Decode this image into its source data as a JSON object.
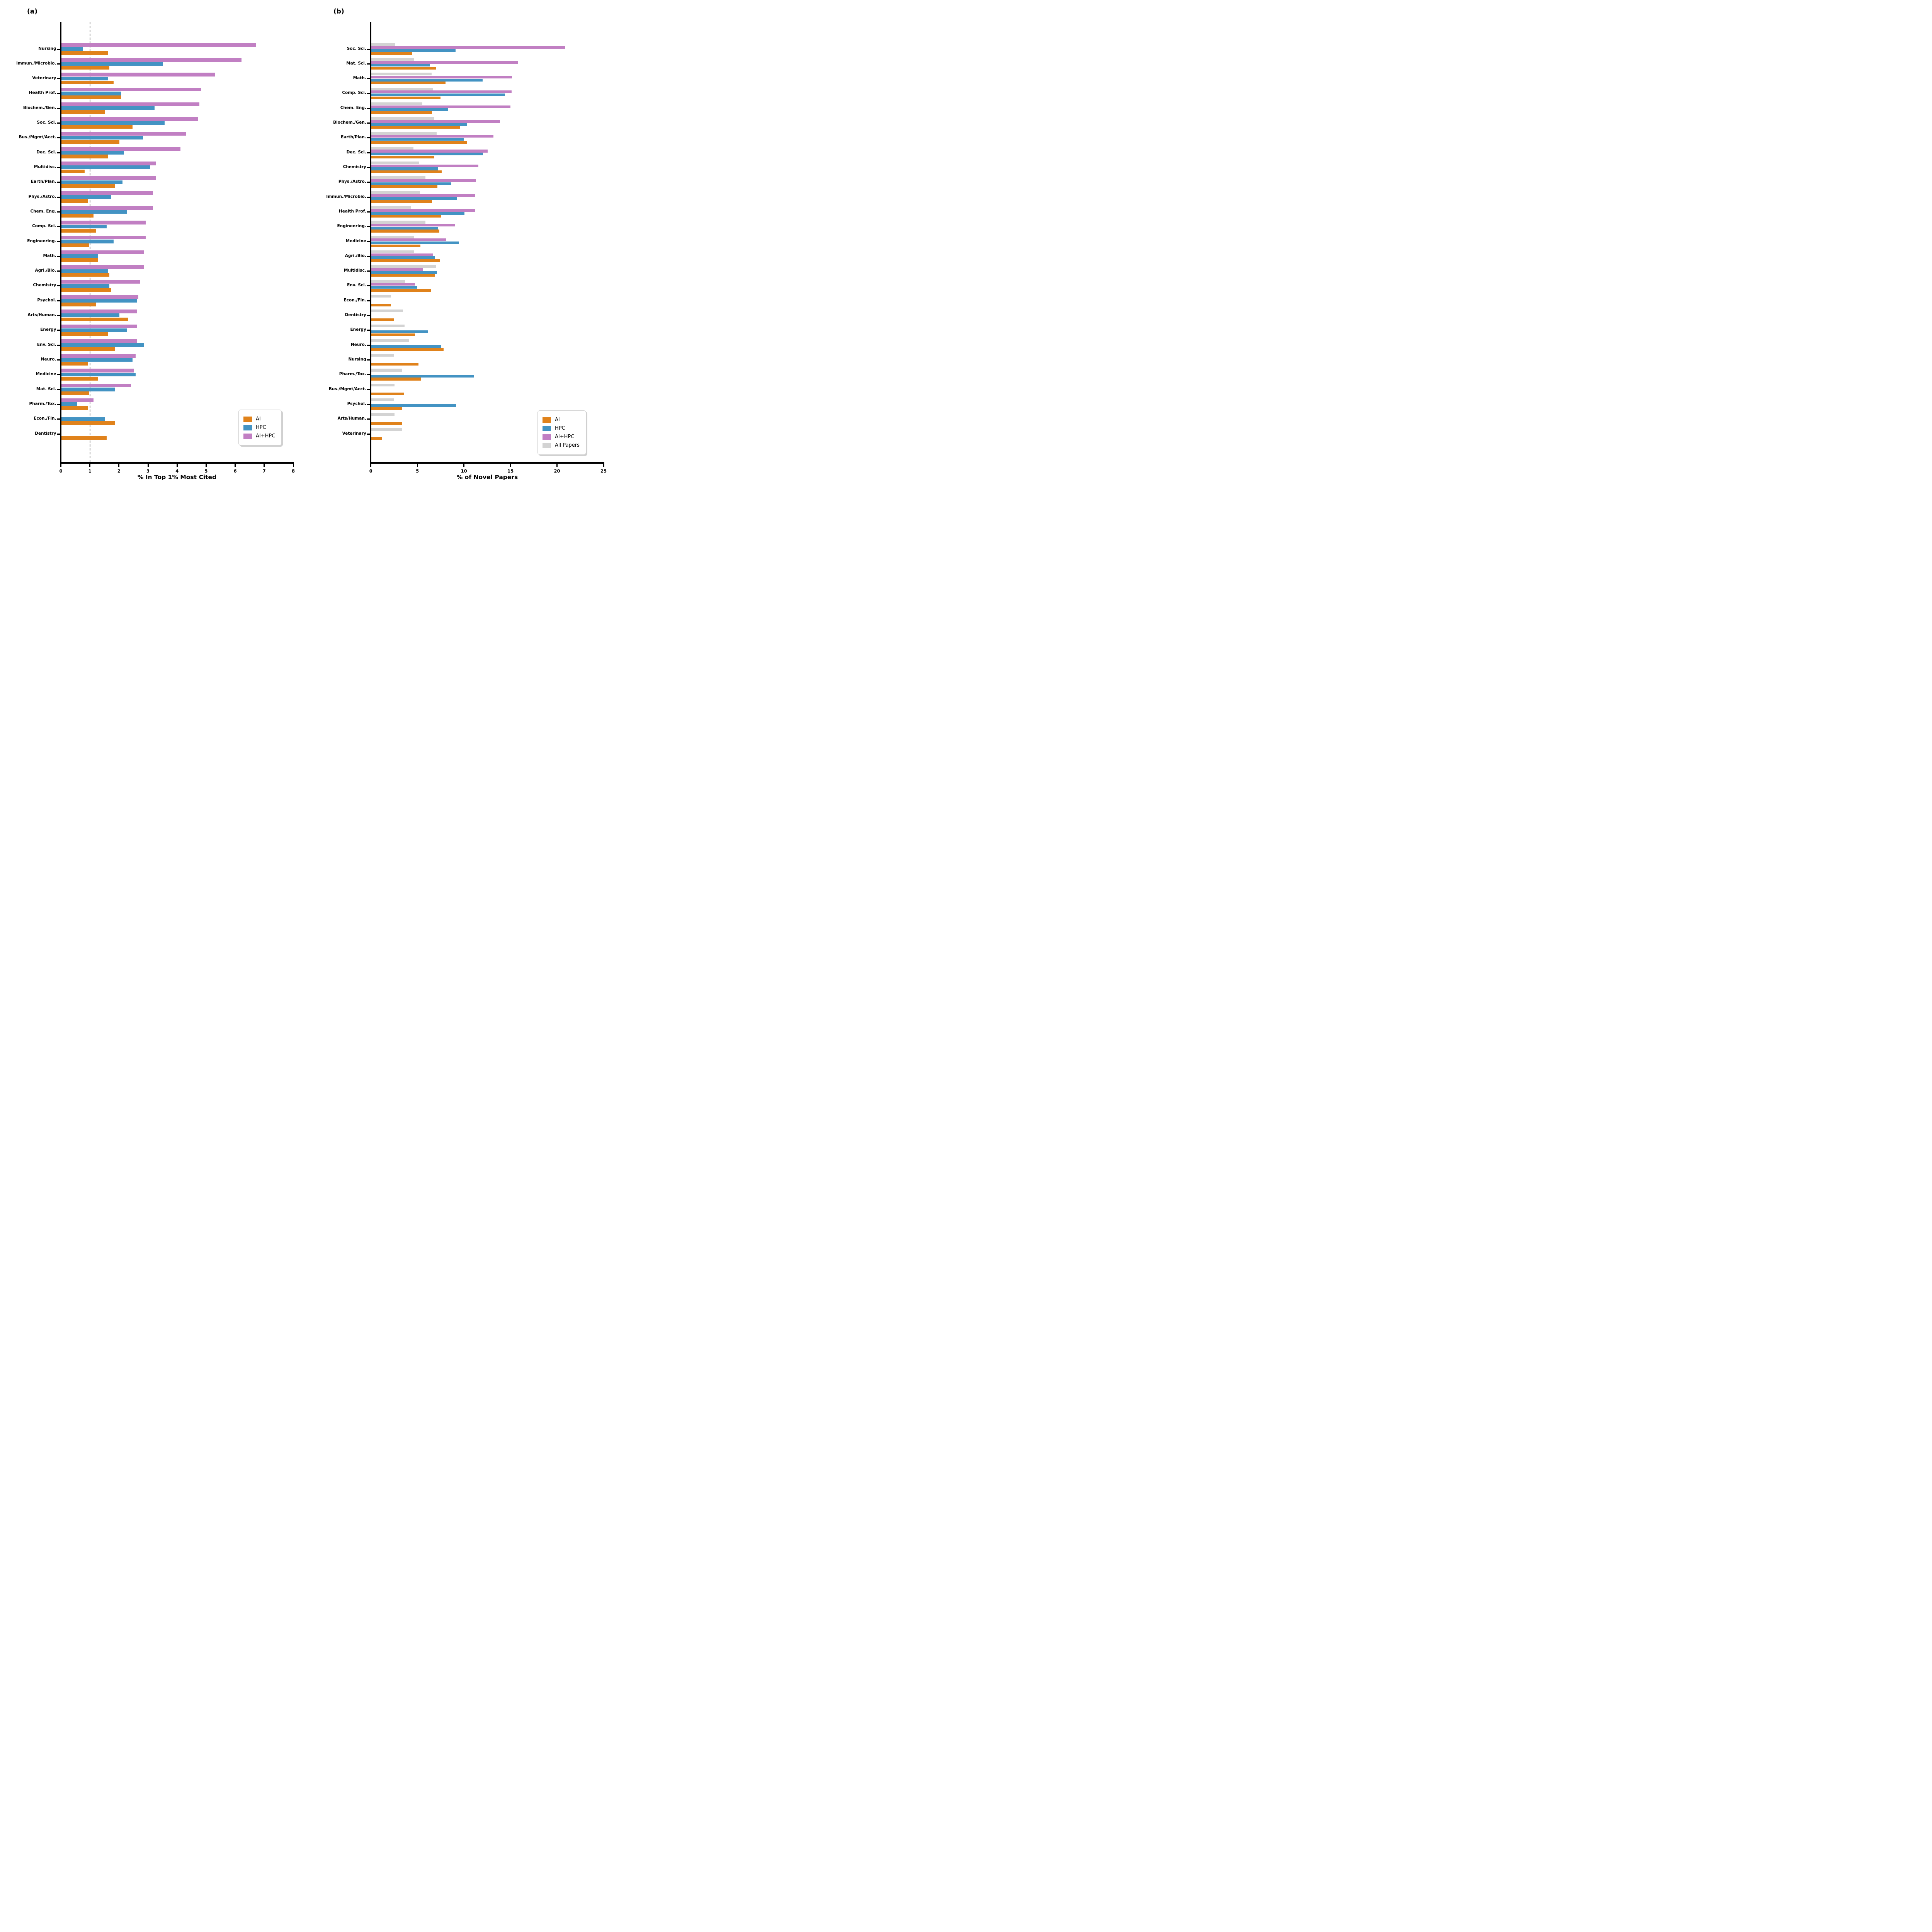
{
  "figure": {
    "background": "#ffffff",
    "colors": {
      "AI": "#E0821B",
      "HPC": "#4393C3",
      "AI+HPC": "#C17FC3",
      "All Papers": "#D3D3D3"
    }
  },
  "chart_data": [
    {
      "type": "bar",
      "orientation": "horizontal",
      "title": "(a)",
      "xlabel": "% In Top 1% Most Cited",
      "ylabel": "",
      "xlim": [
        0,
        8
      ],
      "xticks": [
        0,
        1,
        2,
        3,
        4,
        5,
        6,
        7,
        8
      ],
      "grid": false,
      "reference_line_x": 1,
      "legend_position": "lower right",
      "legend_entries": [
        "AI",
        "HPC",
        "AI+HPC"
      ],
      "series_visual_order_top_to_bottom": [
        "AI+HPC",
        "HPC",
        "AI"
      ],
      "categories": [
        "Nursing",
        "Immun./Microbio.",
        "Veterinary",
        "Health Prof.",
        "Biochem./Gen.",
        "Soc. Sci.",
        "Bus./Mgmt/Acct.",
        "Dec. Sci.",
        "Multidisc.",
        "Earth/Plan.",
        "Phys./Astro.",
        "Chem. Eng.",
        "Comp. Sci.",
        "Engineering.",
        "Math.",
        "Agri./Bio.",
        "Chemistry",
        "Psychol.",
        "Arts/Human.",
        "Energy",
        "Env. Sci.",
        "Neuro.",
        "Medicine",
        "Mat. Sci.",
        "Pharm./Tox.",
        "Econ./Fin.",
        "Dentistry"
      ],
      "series": [
        {
          "name": "AI",
          "color": "#E0821B",
          "values": [
            1.6,
            1.65,
            1.8,
            2.05,
            1.5,
            2.45,
            2.0,
            1.6,
            0.8,
            1.85,
            0.9,
            1.1,
            1.2,
            0.95,
            1.25,
            1.65,
            1.7,
            1.2,
            2.3,
            1.6,
            1.85,
            0.9,
            1.25,
            0.95,
            0.9,
            1.85,
            1.55
          ]
        },
        {
          "name": "HPC",
          "color": "#4393C3",
          "values": [
            0.75,
            3.5,
            1.6,
            2.05,
            3.2,
            3.55,
            2.8,
            2.15,
            3.05,
            2.1,
            1.7,
            2.25,
            1.55,
            1.8,
            1.25,
            1.6,
            1.65,
            2.6,
            2.0,
            2.25,
            2.85,
            2.45,
            2.55,
            1.85,
            0.55,
            1.5,
            0
          ]
        },
        {
          "name": "AI+HPC",
          "color": "#C17FC3",
          "values": [
            6.7,
            6.2,
            5.3,
            4.8,
            4.75,
            4.7,
            4.3,
            4.1,
            3.25,
            3.25,
            3.15,
            3.15,
            2.9,
            2.9,
            2.85,
            2.85,
            2.7,
            2.65,
            2.6,
            2.6,
            2.6,
            2.55,
            2.5,
            2.4,
            1.1,
            0,
            0
          ]
        }
      ]
    },
    {
      "type": "bar",
      "orientation": "horizontal",
      "title": "(b)",
      "xlabel": "% of Novel Papers",
      "ylabel": "",
      "xlim": [
        0,
        25
      ],
      "xticks": [
        0,
        5,
        10,
        15,
        20,
        25
      ],
      "grid": false,
      "reference_line_x": null,
      "legend_position": "lower right",
      "legend_entries": [
        "AI",
        "HPC",
        "AI+HPC",
        "All Papers"
      ],
      "series_visual_order_top_to_bottom": [
        "All Papers",
        "AI+HPC",
        "HPC",
        "AI"
      ],
      "categories": [
        "Soc. Sci.",
        "Mat. Sci.",
        "Math.",
        "Comp. Sci.",
        "Chem. Eng.",
        "Biochem./Gen.",
        "Earth/Plan.",
        "Dec. Sci.",
        "Chemistry",
        "Phys./Astro.",
        "Immun./Microbio.",
        "Health Prof.",
        "Engineering.",
        "Medicine",
        "Agri./Bio.",
        "Multidisc.",
        "Env. Sci.",
        "Econ./Fin.",
        "Dentistry",
        "Energy",
        "Neuro.",
        "Nursing",
        "Pharm./Tox.",
        "Bus./Mgmt/Acct.",
        "Psychol.",
        "Arts/Human.",
        "Veterinary"
      ],
      "series": [
        {
          "name": "AI",
          "color": "#E0821B",
          "values": [
            4.35,
            6.95,
            7.95,
            7.4,
            6.5,
            9.55,
            10.25,
            6.75,
            7.55,
            7.1,
            6.5,
            7.45,
            7.3,
            5.25,
            7.35,
            6.8,
            6.4,
            2.1,
            2.45,
            4.7,
            7.75,
            5.05,
            5.35,
            3.5,
            3.25,
            3.25,
            1.15
          ]
        },
        {
          "name": "HPC",
          "color": "#4393C3",
          "values": [
            9.05,
            6.3,
            11.95,
            14.35,
            8.2,
            10.3,
            9.9,
            12.0,
            7.15,
            8.6,
            9.15,
            10.0,
            7.15,
            9.4,
            6.8,
            7.05,
            4.95,
            0,
            0,
            6.1,
            7.45,
            0,
            11.05,
            0,
            9.1,
            0,
            0
          ]
        },
        {
          "name": "AI+HPC",
          "color": "#C17FC3",
          "values": [
            20.8,
            15.75,
            15.1,
            15.05,
            14.95,
            13.8,
            13.1,
            12.5,
            11.5,
            11.25,
            11.1,
            11.1,
            9.0,
            8.05,
            6.65,
            5.55,
            4.7,
            0,
            0,
            0,
            0,
            0,
            0,
            0,
            0,
            0,
            0
          ]
        },
        {
          "name": "All Papers",
          "color": "#D3D3D3",
          "values": [
            2.55,
            4.6,
            6.45,
            6.65,
            5.45,
            6.75,
            7.0,
            4.5,
            5.1,
            5.8,
            5.2,
            4.25,
            5.8,
            4.55,
            4.55,
            6.95,
            3.6,
            2.1,
            3.4,
            3.55,
            4.0,
            2.4,
            3.25,
            2.5,
            2.45,
            2.5,
            3.3
          ]
        }
      ]
    }
  ]
}
